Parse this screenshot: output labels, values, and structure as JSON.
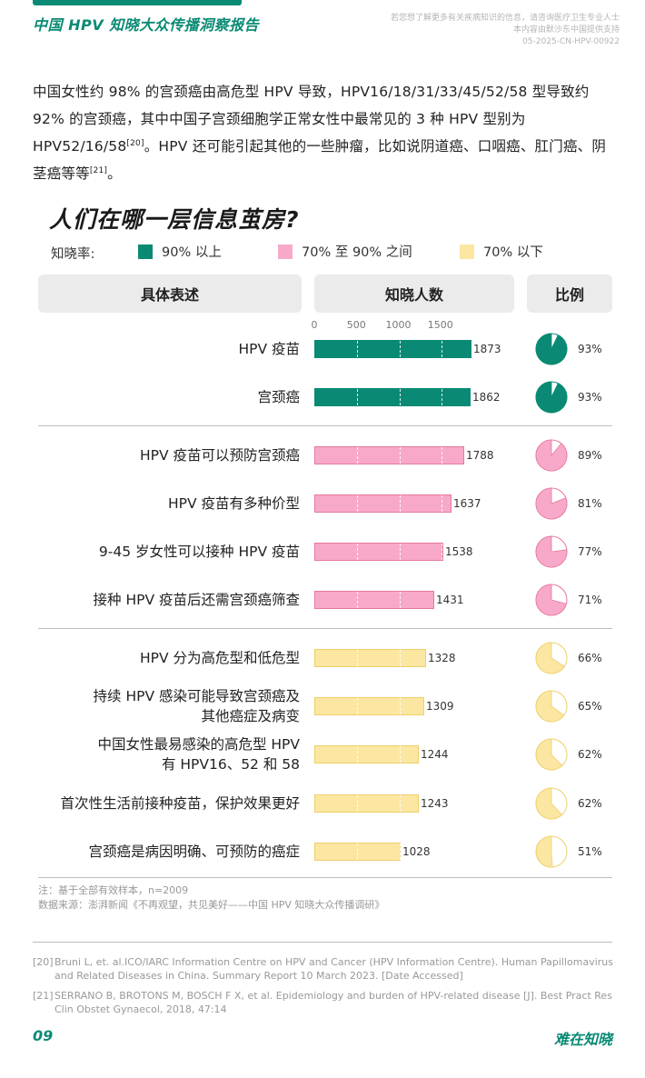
{
  "header": {
    "title": "中国 HPV 知晓大众传播洞察报告",
    "disclaimer": [
      "若您想了解更多有关疾病知识的信息，请咨询医疗卫生专业人士",
      "本内容由默沙东中国提供支持",
      "05-2025-CN-HPV-00922"
    ]
  },
  "intro": {
    "text1": "中国女性约 98% 的宫颈癌由高危型 HPV 导致，HPV16/18/31/33/45/52/58 型导致约 92% 的宫颈癌，其中中国子宫颈细胞学正常女性中最常见的 3 种 HPV 型别为 HPV52/16/58",
    "ref1": "[20]",
    "text2": "。HPV 还可能引起其他的一些肿瘤，比如说阴道癌、口咽癌、肛门癌、阴茎癌等等",
    "ref2": "[21]",
    "text3": "。"
  },
  "section_title": "人们在哪一层信息茧房?",
  "legend": {
    "label": "知晓率:",
    "items": [
      {
        "label": "90% 以上",
        "color": "#0a8a74"
      },
      {
        "label": "70% 至 90% 之间",
        "color": "#f8a9c9"
      },
      {
        "label": "70% 以下",
        "color": "#fbe7a2"
      }
    ]
  },
  "table_headers": {
    "desc": "具体表述",
    "count": "知晓人数",
    "ratio": "比例"
  },
  "chart_data": {
    "type": "bar",
    "orientation": "horizontal",
    "x_ticks": [
      "0",
      "500",
      "1000",
      "1500"
    ],
    "xlim": [
      0,
      2009
    ],
    "tier_colors": {
      "high": {
        "fill": "#0a8a74",
        "stroke": "#0a8a74"
      },
      "mid": {
        "fill": "#f8a9c9",
        "stroke": "#e5789f"
      },
      "low": {
        "fill": "#fbe7a2",
        "stroke": "#eecf6c"
      }
    },
    "rows": [
      {
        "label": "HPV 疫苗",
        "value": 1873,
        "value_label": "1873",
        "percent": 93,
        "percent_label": "93%",
        "tier": "high"
      },
      {
        "label": "宫颈癌",
        "value": 1862,
        "value_label": "1862",
        "percent": 93,
        "percent_label": "93%",
        "tier": "high"
      },
      {
        "label": "HPV 疫苗可以预防宫颈癌",
        "value": 1788,
        "value_label": "1788",
        "percent": 89,
        "percent_label": "89%",
        "tier": "mid"
      },
      {
        "label": "HPV 疫苗有多种价型",
        "value": 1637,
        "value_label": "1637",
        "percent": 81,
        "percent_label": "81%",
        "tier": "mid"
      },
      {
        "label": "9-45 岁女性可以接种 HPV 疫苗",
        "value": 1538,
        "value_label": "1538",
        "percent": 77,
        "percent_label": "77%",
        "tier": "mid"
      },
      {
        "label": "接种 HPV 疫苗后还需宫颈癌筛查",
        "value": 1431,
        "value_label": "1431",
        "percent": 71,
        "percent_label": "71%",
        "tier": "mid"
      },
      {
        "label": "HPV 分为高危型和低危型",
        "value": 1328,
        "value_label": "1328",
        "percent": 66,
        "percent_label": "66%",
        "tier": "low"
      },
      {
        "label": [
          "持续 HPV 感染可能导致宫颈癌及",
          "其他癌症及病变"
        ],
        "value": 1309,
        "value_label": "1309",
        "percent": 65,
        "percent_label": "65%",
        "tier": "low"
      },
      {
        "label": [
          "中国女性最易感染的高危型 HPV",
          "有 HPV16、52 和 58"
        ],
        "value": 1244,
        "value_label": "1244",
        "percent": 62,
        "percent_label": "62%",
        "tier": "low"
      },
      {
        "label": "首次性生活前接种疫苗，保护效果更好",
        "value": 1243,
        "value_label": "1243",
        "percent": 62,
        "percent_label": "62%",
        "tier": "low"
      },
      {
        "label": "宫颈癌是病因明确、可预防的癌症",
        "value": 1028,
        "value_label": "1028",
        "percent": 51,
        "percent_label": "51%",
        "tier": "low"
      }
    ]
  },
  "notes": {
    "note": "注：基于全部有效样本，n=2009",
    "source": "数据来源：澎湃新闻《不再观望，共见美好——中国 HPV 知晓大众传播调研》"
  },
  "references": [
    {
      "num": "[20]",
      "text": "Bruni L, et. al.ICO/IARC Information Centre on HPV and Cancer (HPV Information Centre). Human Papillomavirus and Related Diseases in China. Summary Report 10 March 2023. [Date Accessed]"
    },
    {
      "num": "[21]",
      "text": "SERRANO B, BROTONS M, BOSCH F X, et al. Epidemiology and burden of HPV-related disease [J]. Best Pract Res Clin Obstet Gynaecol, 2018, 47:14"
    }
  ],
  "footer": {
    "page": "09",
    "brand": "难在知晓"
  }
}
